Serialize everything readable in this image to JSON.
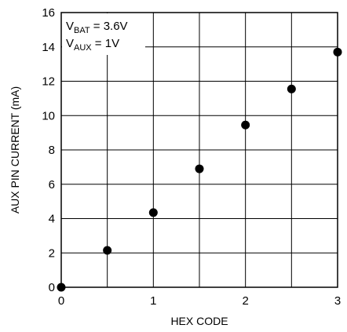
{
  "chart_data": {
    "type": "scatter",
    "title": "",
    "xlabel": "HEX CODE",
    "ylabel": "AUX PIN CURRENT (mA)",
    "xlim": [
      0,
      3
    ],
    "ylim": [
      0,
      16
    ],
    "xticks": [
      "0",
      "1",
      "2",
      "3"
    ],
    "yticks": [
      "0",
      "2",
      "4",
      "6",
      "8",
      "10",
      "12",
      "14",
      "16"
    ],
    "grid": true,
    "x_minor_grid_step": 0.5,
    "marker_color": "#000000",
    "annotations": [
      {
        "main": "V",
        "sub": "BAT",
        "rest": " = 3.6V"
      },
      {
        "main": "V",
        "sub": "AUX",
        "rest": " = 1V"
      }
    ],
    "series": [
      {
        "x": [
          0,
          0.5,
          1,
          1.5,
          2,
          2.5,
          3
        ],
        "y": [
          0,
          2.15,
          4.35,
          6.9,
          9.45,
          11.55,
          13.7
        ]
      }
    ]
  }
}
